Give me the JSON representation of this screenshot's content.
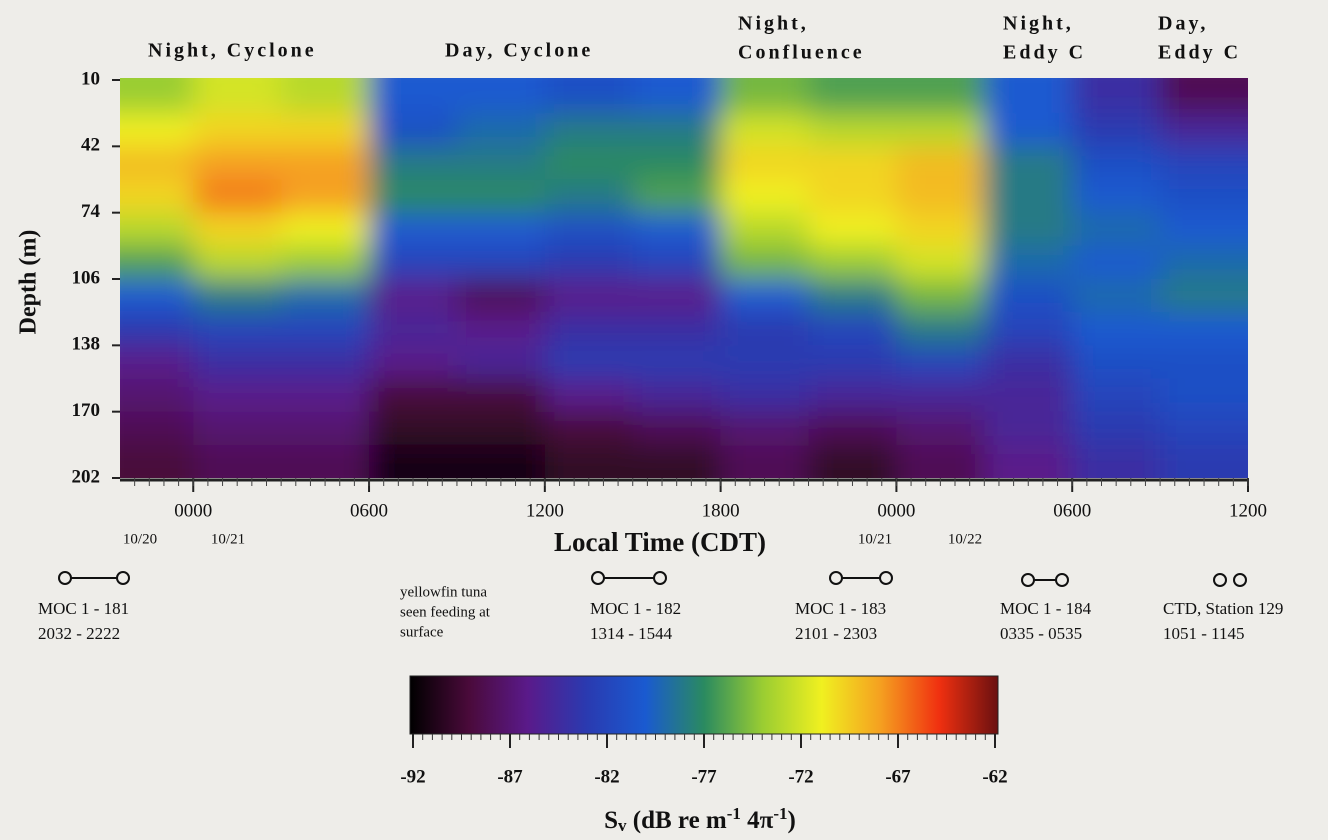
{
  "chart_data": {
    "type": "heatmap",
    "period_labels": [
      [
        "Night, Cyclone"
      ],
      [
        "Day, Cyclone"
      ],
      [
        "Night,",
        "Confluence"
      ],
      [
        "Night,",
        "Eddy C"
      ],
      [
        "Day,",
        "Eddy C"
      ]
    ],
    "ylabel": "Depth (m)",
    "xlabel": "Local Time (CDT)",
    "date_labels": [
      "10/20",
      "10/21",
      "10/21",
      "10/22"
    ],
    "xlim": [
      -2.5,
      36
    ],
    "xticks": [
      {
        "value": 0,
        "label": "0000"
      },
      {
        "value": 6,
        "label": "0600"
      },
      {
        "value": 12,
        "label": "1200"
      },
      {
        "value": 18,
        "label": "1800"
      },
      {
        "value": 24,
        "label": "0000"
      },
      {
        "value": 30,
        "label": "0600"
      },
      {
        "value": 36,
        "label": "1200"
      }
    ],
    "ylim": [
      10,
      202
    ],
    "yticks": [
      10,
      42,
      74,
      106,
      138,
      170,
      202
    ],
    "xbins": [
      -2.5,
      0,
      3,
      6,
      9,
      12,
      15,
      18,
      21,
      24,
      27,
      30,
      33,
      36
    ],
    "ybins": [
      10,
      26,
      42,
      58,
      74,
      90,
      106,
      122,
      138,
      154,
      170,
      186,
      202
    ],
    "values": [
      [
        -74,
        -71,
        -69,
        -70,
        -73,
        -76,
        -80,
        -83,
        -86,
        -87,
        -88,
        -89
      ],
      [
        -72,
        -70,
        -68,
        -67,
        -70,
        -73,
        -78,
        -82,
        -84,
        -86,
        -87,
        -88
      ],
      [
        -73,
        -70,
        -68,
        -68,
        -71,
        -74,
        -79,
        -82,
        -84,
        -86,
        -87,
        -88
      ],
      [
        -80,
        -81,
        -78,
        -77,
        -80,
        -82,
        -86,
        -85,
        -86,
        -89,
        -90,
        -91
      ],
      [
        -80,
        -79,
        -78,
        -77,
        -80,
        -82,
        -88,
        -86,
        -85,
        -89,
        -90,
        -91
      ],
      [
        -81,
        -78,
        -77,
        -78,
        -81,
        -83,
        -86,
        -84,
        -83,
        -86,
        -89,
        -90
      ],
      [
        -80,
        -78,
        -77,
        -76,
        -80,
        -82,
        -86,
        -84,
        -83,
        -85,
        -88,
        -90
      ],
      [
        -75,
        -72,
        -70,
        -71,
        -73,
        -75,
        -80,
        -83,
        -83,
        -84,
        -87,
        -88
      ],
      [
        -76,
        -73,
        -70,
        -70,
        -71,
        -74,
        -78,
        -82,
        -83,
        -85,
        -88,
        -90
      ],
      [
        -76,
        -73,
        -69,
        -69,
        -70,
        -72,
        -75,
        -78,
        -82,
        -85,
        -87,
        -88
      ],
      [
        -80,
        -80,
        -78,
        -78,
        -78,
        -79,
        -81,
        -82,
        -84,
        -85,
        -85,
        -86
      ],
      [
        -84,
        -83,
        -81,
        -80,
        -79,
        -80,
        -79,
        -80,
        -81,
        -82,
        -83,
        -84
      ],
      [
        -88,
        -85,
        -82,
        -81,
        -80,
        -79,
        -78,
        -80,
        -81,
        -81,
        -82,
        -83
      ]
    ],
    "colormap": [
      "#000000",
      "#4a0a3a",
      "#5a1a8a",
      "#2a3ab0",
      "#1a5ad0",
      "#2a8a60",
      "#9acd32",
      "#f0f020",
      "#f5a020",
      "#f03010",
      "#6a1010"
    ],
    "zlim": [
      -92,
      -62
    ],
    "zticks": [
      -92,
      -87,
      -82,
      -77,
      -72,
      -67,
      -62
    ],
    "colorbar_title": [
      "S",
      "v",
      " (dB re m",
      "-1",
      " 4π",
      "-1",
      ")"
    ],
    "annotations": [
      [
        "MOC 1 - 181",
        "2032 - 2222"
      ],
      [
        "yellowfin tuna",
        "seen feeding at",
        "surface"
      ],
      [
        "MOC 1 - 182",
        "1314 - 1544"
      ],
      [
        "MOC 1 - 183",
        "2101 - 2303"
      ],
      [
        "MOC 1 - 184",
        "0335 - 0535"
      ],
      [
        "CTD, Station 129",
        "1051 - 1145"
      ]
    ]
  }
}
